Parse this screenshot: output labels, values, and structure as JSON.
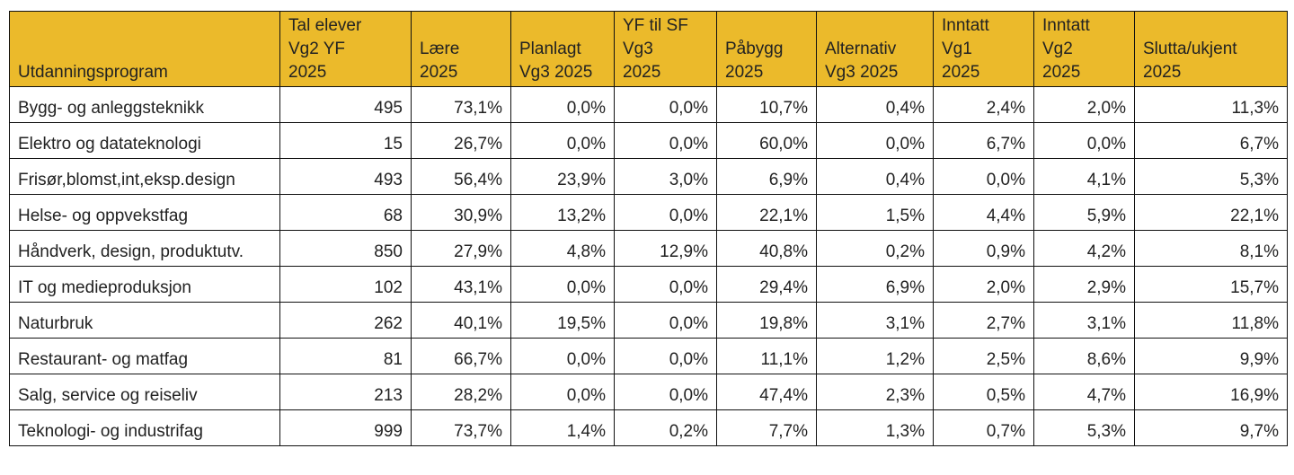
{
  "table": {
    "header": [
      "Utdanningsprogram",
      "Tal elever\nVg2 YF\n2025",
      "Lære\n2025",
      "Planlagt\nVg3 2025",
      "YF til SF\nVg3\n2025",
      "Påbygg\n2025",
      "Alternativ\nVg3 2025",
      "Inntatt\nVg1\n2025",
      "Inntatt\nVg2\n2025",
      "Slutta/ukjent\n2025"
    ],
    "rows": [
      [
        "Bygg- og anleggsteknikk",
        "495",
        "73,1%",
        "0,0%",
        "0,0%",
        "10,7%",
        "0,4%",
        "2,4%",
        "2,0%",
        "11,3%"
      ],
      [
        "Elektro og datateknologi",
        "15",
        "26,7%",
        "0,0%",
        "0,0%",
        "60,0%",
        "0,0%",
        "6,7%",
        "0,0%",
        "6,7%"
      ],
      [
        "Frisør,blomst,int,eksp.design",
        "493",
        "56,4%",
        "23,9%",
        "3,0%",
        "6,9%",
        "0,4%",
        "0,0%",
        "4,1%",
        "5,3%"
      ],
      [
        "Helse- og oppvekstfag",
        "68",
        "30,9%",
        "13,2%",
        "0,0%",
        "22,1%",
        "1,5%",
        "4,4%",
        "5,9%",
        "22,1%"
      ],
      [
        "Håndverk, design, produktutv.",
        "850",
        "27,9%",
        "4,8%",
        "12,9%",
        "40,8%",
        "0,2%",
        "0,9%",
        "4,2%",
        "8,1%"
      ],
      [
        "IT og medieproduksjon",
        "102",
        "43,1%",
        "0,0%",
        "0,0%",
        "29,4%",
        "6,9%",
        "2,0%",
        "2,9%",
        "15,7%"
      ],
      [
        "Naturbruk",
        "262",
        "40,1%",
        "19,5%",
        "0,0%",
        "19,8%",
        "3,1%",
        "2,7%",
        "3,1%",
        "11,8%"
      ],
      [
        "Restaurant- og matfag",
        "81",
        "66,7%",
        "0,0%",
        "0,0%",
        "11,1%",
        "1,2%",
        "2,5%",
        "8,6%",
        "9,9%"
      ],
      [
        "Salg, service og reiseliv",
        "213",
        "28,2%",
        "0,0%",
        "0,0%",
        "47,4%",
        "2,3%",
        "0,5%",
        "4,7%",
        "16,9%"
      ],
      [
        "Teknologi- og industrifag",
        "999",
        "73,7%",
        "1,4%",
        "0,2%",
        "7,7%",
        "1,3%",
        "0,7%",
        "5,3%",
        "9,7%"
      ]
    ]
  }
}
